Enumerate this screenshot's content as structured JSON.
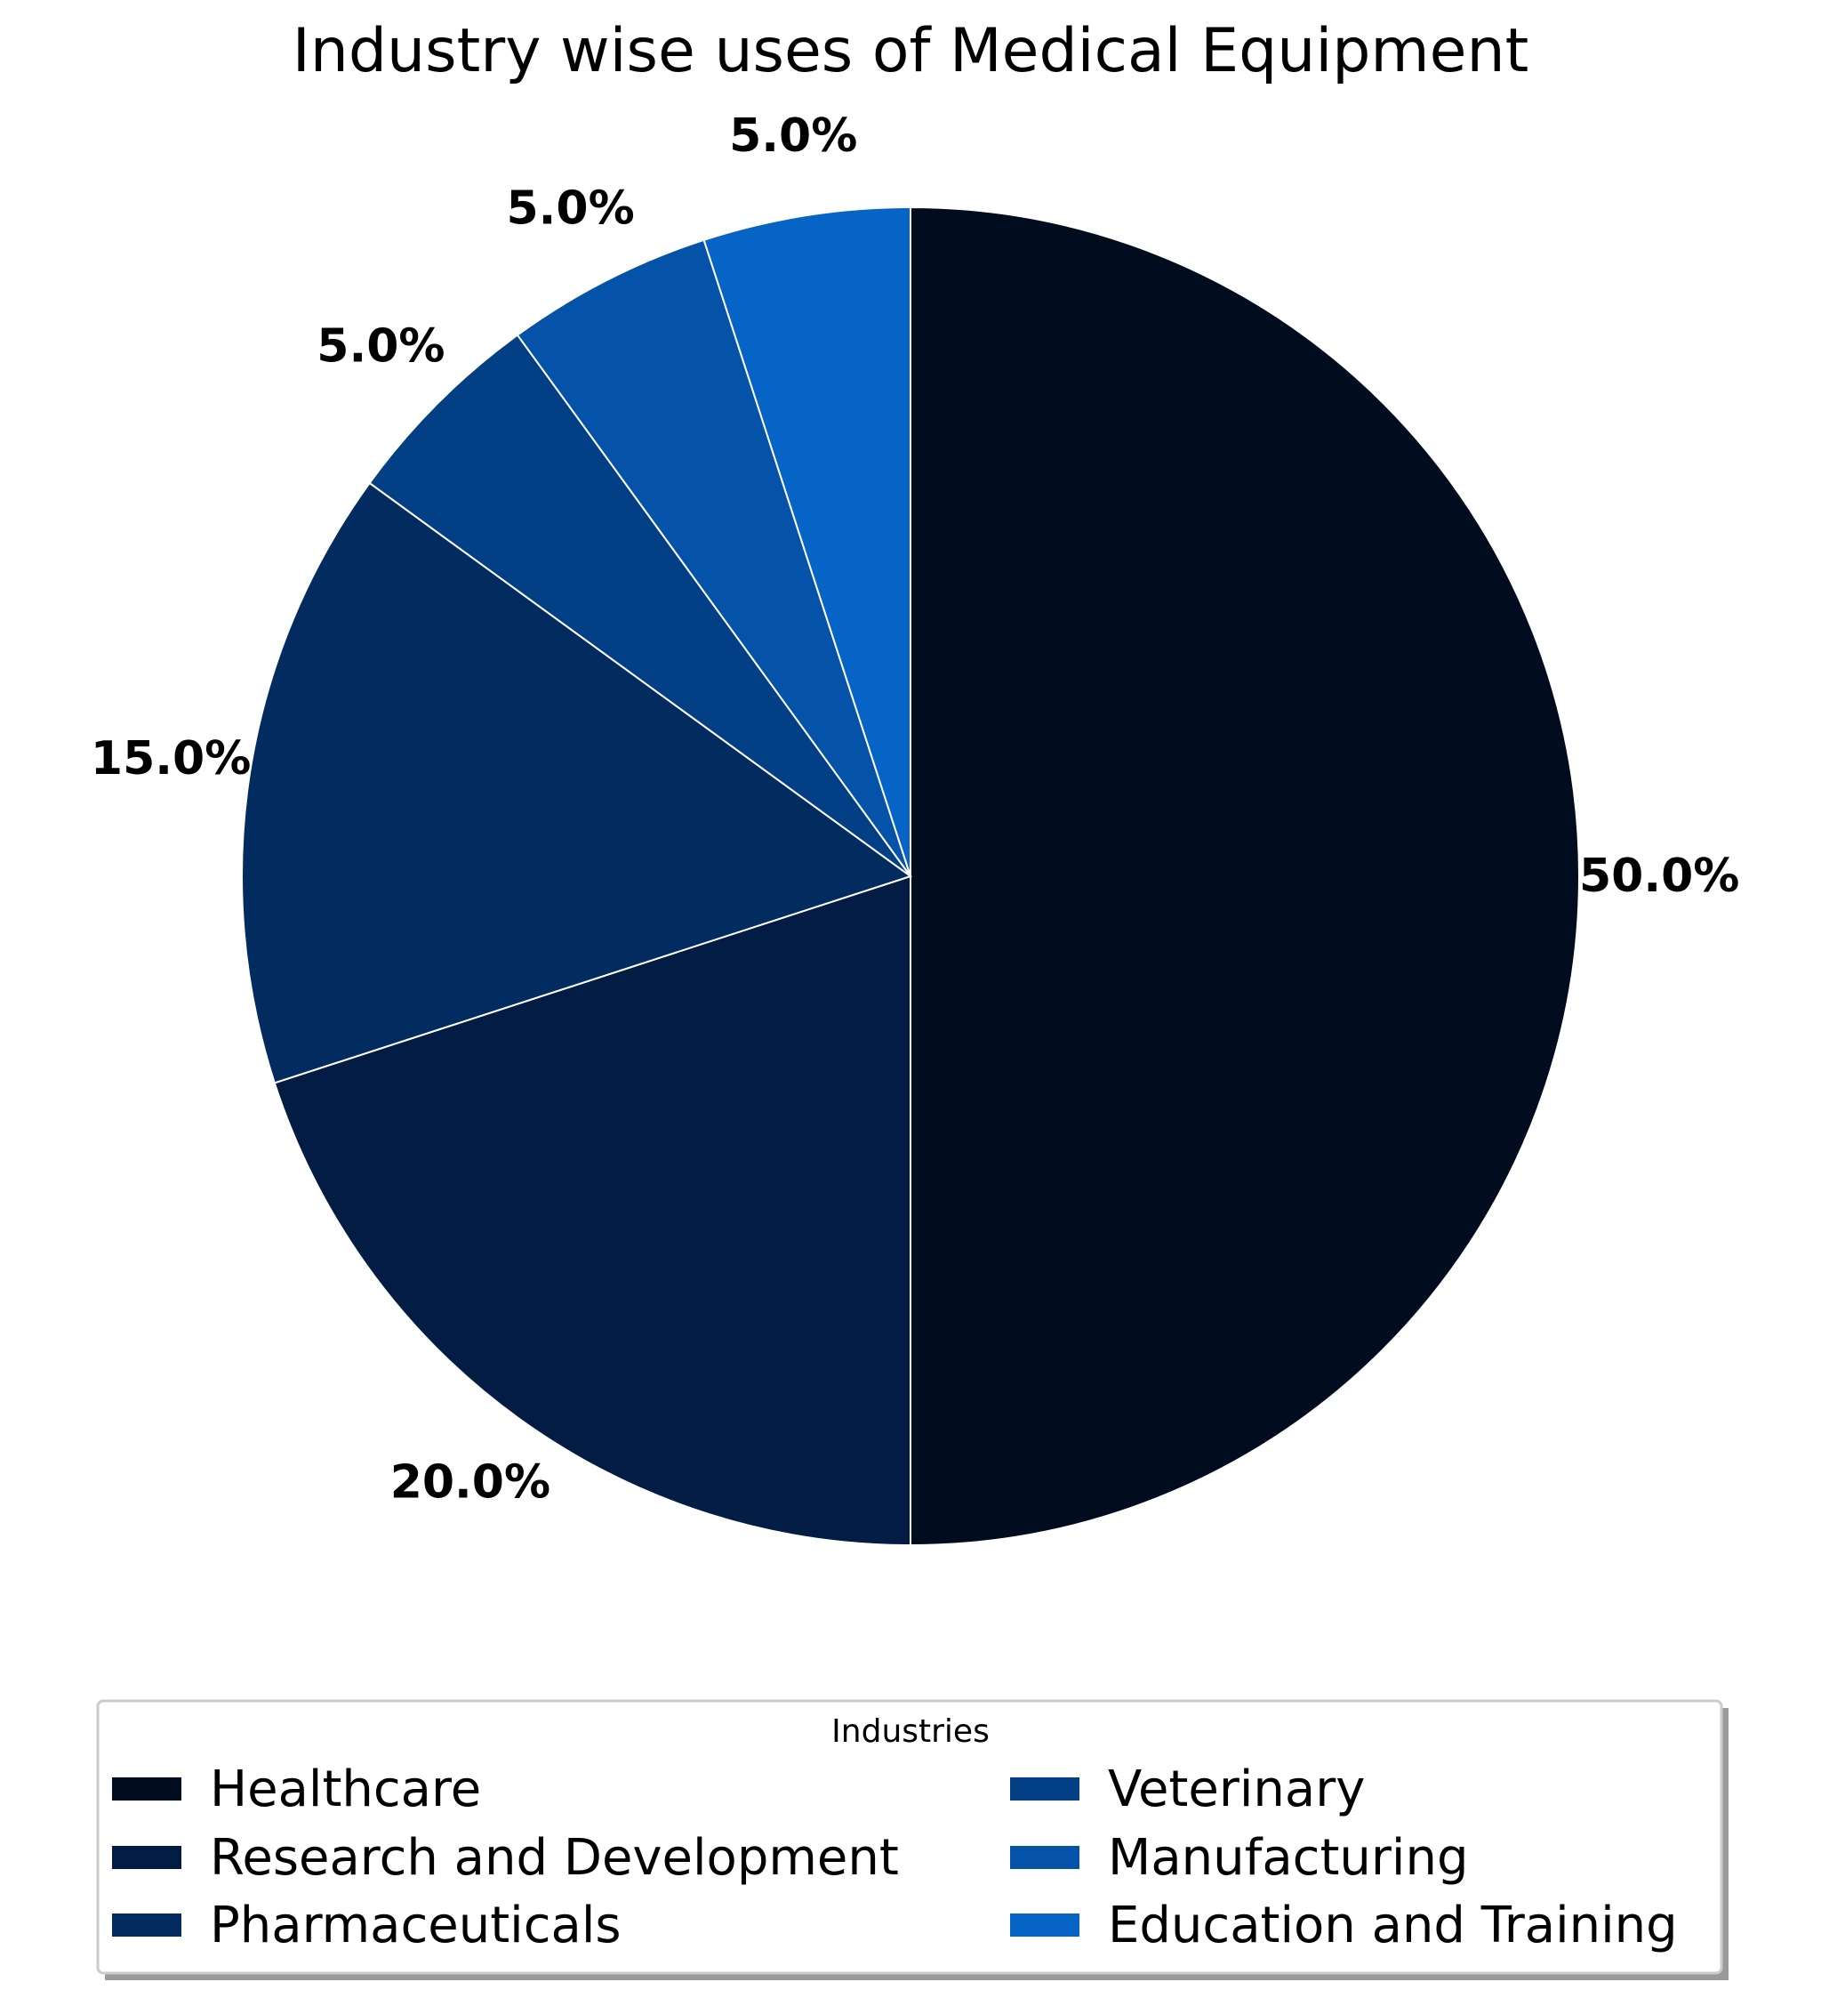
{
  "chart_data": {
    "type": "pie",
    "title": "Industry wise uses of Medical Equipment",
    "legend_title": "Industries",
    "legend_placement": "bottom",
    "start_angle_deg": 90,
    "direction": "clockwise",
    "slices": [
      {
        "label": "Healthcare",
        "value": 50.0,
        "pct_label": "50.0%",
        "color": "#020c1f"
      },
      {
        "label": "Research and Development",
        "value": 20.0,
        "pct_label": "20.0%",
        "color": "#021c44"
      },
      {
        "label": "Pharmaceuticals",
        "value": 15.0,
        "pct_label": "15.0%",
        "color": "#022c5f"
      },
      {
        "label": "Veterinary",
        "value": 5.0,
        "pct_label": "5.0%",
        "color": "#033f84"
      },
      {
        "label": "Manufacturing",
        "value": 5.0,
        "pct_label": "5.0%",
        "color": "#0453a8"
      },
      {
        "label": "Education and Training",
        "value": 5.0,
        "pct_label": "5.0%",
        "color": "#0564c6"
      }
    ]
  }
}
